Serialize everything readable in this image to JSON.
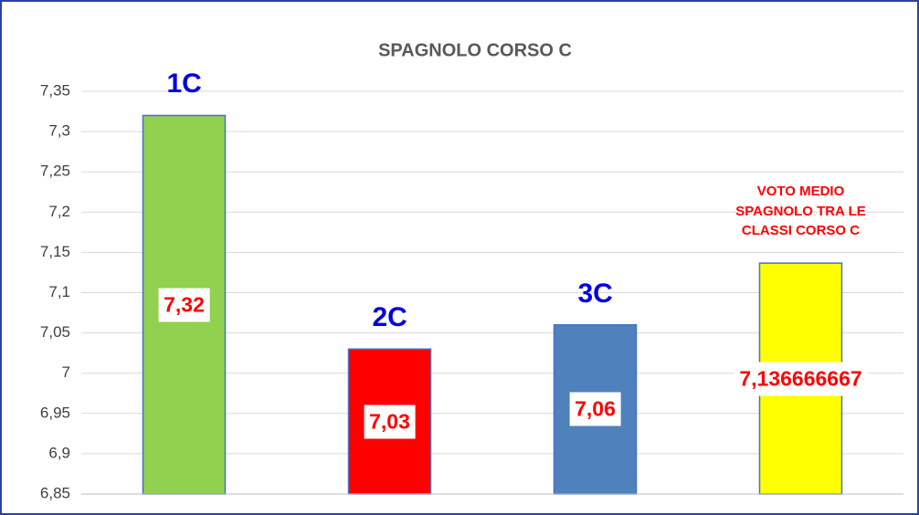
{
  "chart_data": {
    "type": "bar",
    "title": "SPAGNOLO CORSO C",
    "categories": [
      "1C",
      "2C",
      "3C",
      "VOTO MEDIO SPAGNOLO TRA LE CLASSI CORSO C"
    ],
    "values": [
      7.32,
      7.03,
      7.06,
      7.136666667
    ],
    "value_labels": [
      "7,32",
      "7,03",
      "7,06",
      "7,136666667"
    ],
    "colors": [
      "#92d050",
      "#ff0000",
      "#4f81bd",
      "#ffff00"
    ],
    "ylim": [
      6.85,
      7.35
    ],
    "yticks": [
      {
        "value": 6.85,
        "label": "6,85"
      },
      {
        "value": 6.9,
        "label": "6,9"
      },
      {
        "value": 6.95,
        "label": "6,95"
      },
      7,
      {
        "value": 7.05,
        "label": "7,05"
      },
      {
        "value": 7.1,
        "label": "7,1"
      },
      {
        "value": 7.15,
        "label": "7,15"
      },
      {
        "value": 7.2,
        "label": "7,2"
      },
      {
        "value": 7.25,
        "label": "7,25"
      },
      {
        "value": 7.3,
        "label": "7,3"
      },
      {
        "value": 7.35,
        "label": "7,35"
      }
    ],
    "grid": true
  }
}
